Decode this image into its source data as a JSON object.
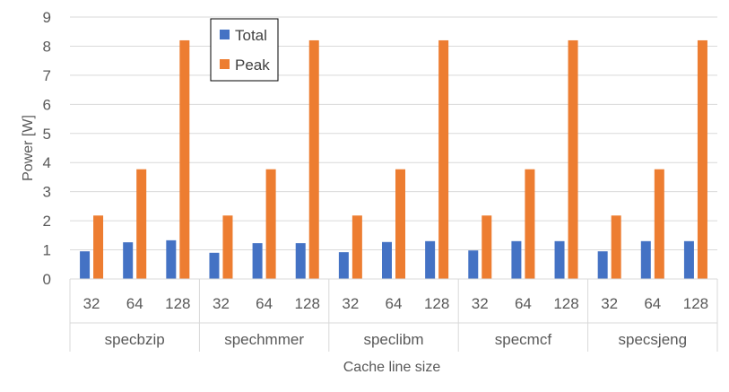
{
  "chart_data": {
    "type": "bar",
    "title": "",
    "xlabel": "Cache line size",
    "ylabel": "Power [W]",
    "ylim": [
      0,
      9
    ],
    "yticks": [
      0,
      1,
      2,
      3,
      4,
      5,
      6,
      7,
      8,
      9
    ],
    "grid": true,
    "legend_position": "top-left",
    "groups": [
      "specbzip",
      "spechmmer",
      "speclibm",
      "specmcf",
      "specsjeng"
    ],
    "categories": [
      "32",
      "64",
      "128"
    ],
    "series": [
      {
        "name": "Total",
        "color": "#4472C4",
        "values": [
          [
            0.95,
            1.26,
            1.33
          ],
          [
            0.9,
            1.23,
            1.23
          ],
          [
            0.92,
            1.27,
            1.3
          ],
          [
            0.98,
            1.3,
            1.3
          ],
          [
            0.95,
            1.3,
            1.3
          ]
        ]
      },
      {
        "name": "Peak",
        "color": "#ED7D31",
        "values": [
          [
            2.18,
            3.77,
            8.2
          ],
          [
            2.18,
            3.77,
            8.2
          ],
          [
            2.18,
            3.77,
            8.2
          ],
          [
            2.18,
            3.77,
            8.2
          ],
          [
            2.18,
            3.77,
            8.2
          ]
        ]
      }
    ]
  }
}
